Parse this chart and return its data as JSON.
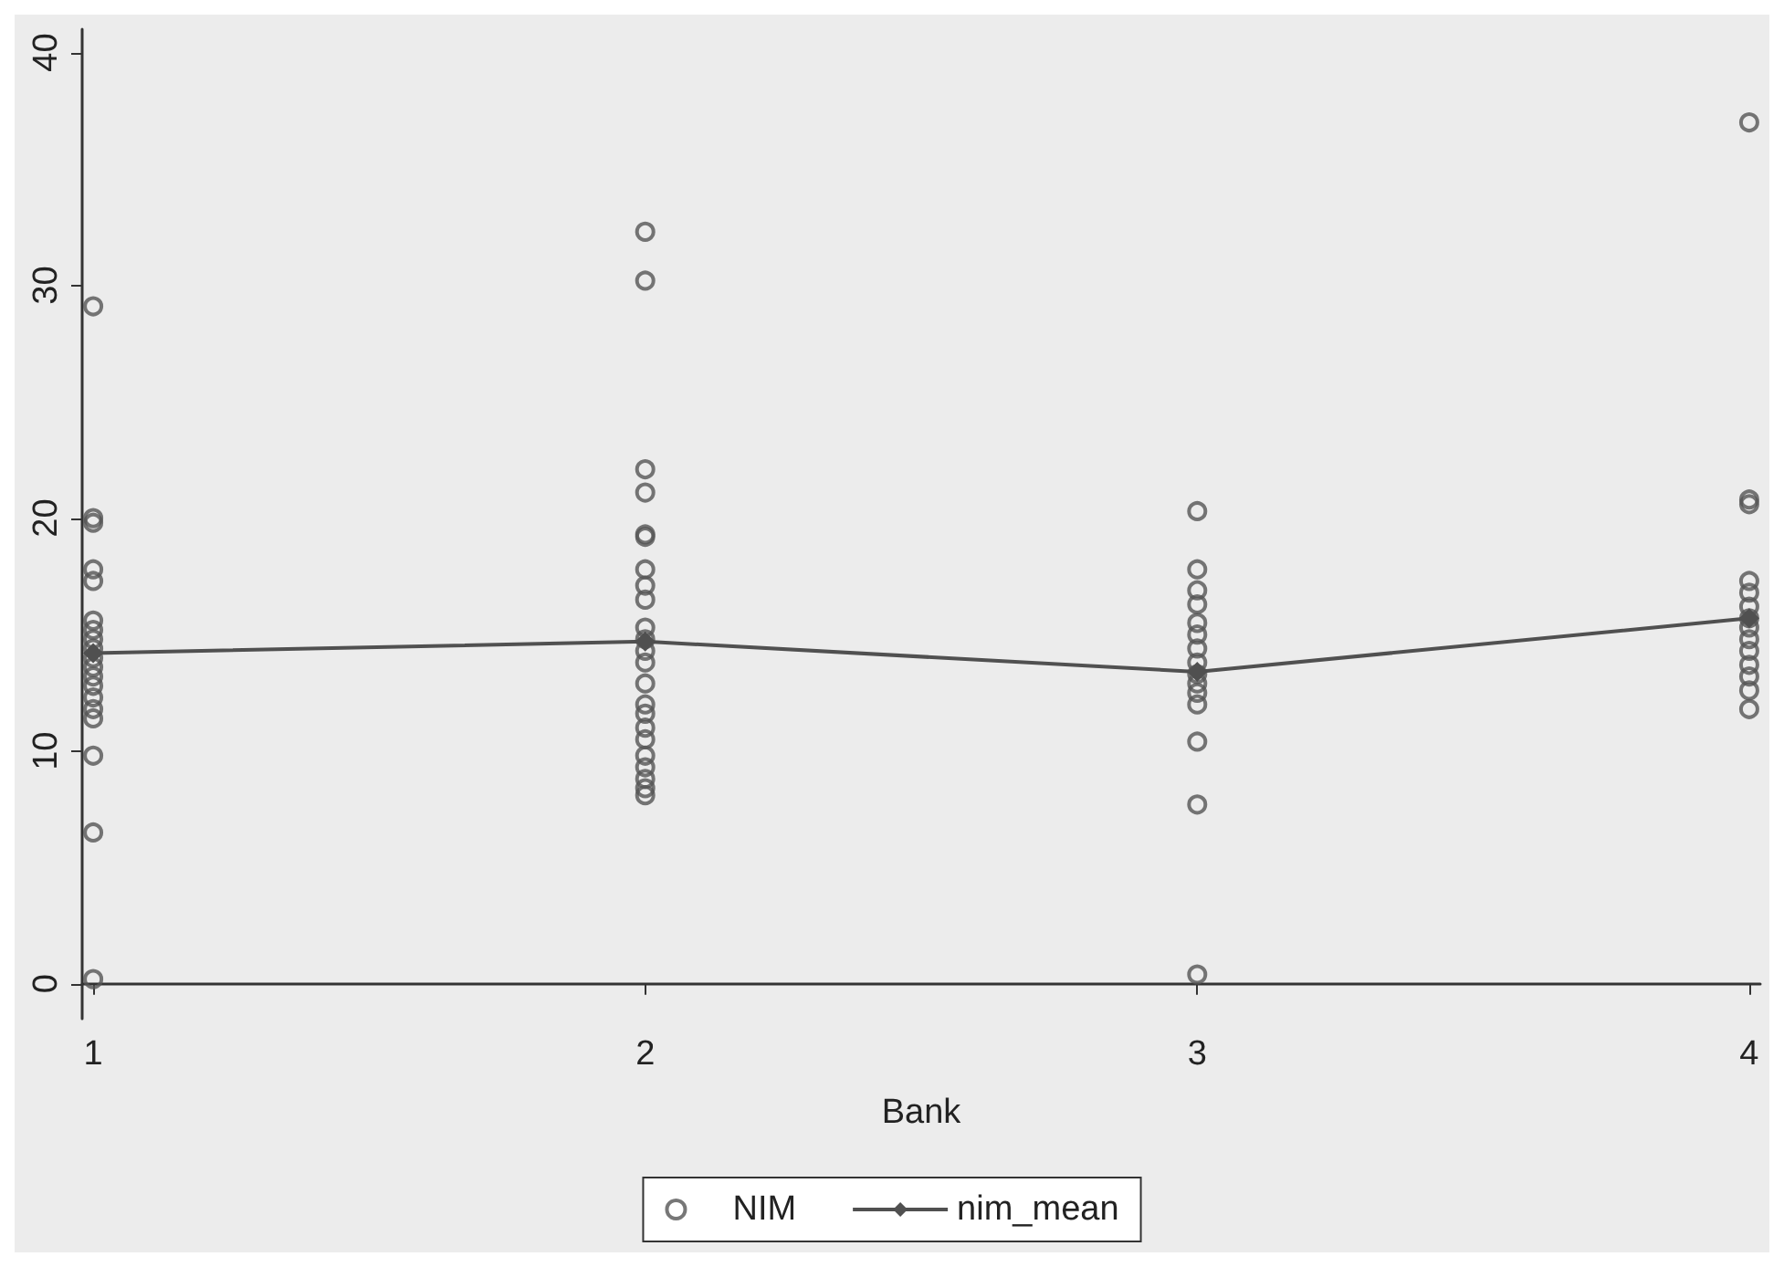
{
  "chart_data": {
    "type": "scatter",
    "xlabel": "Bank",
    "xlim": [
      0.98,
      4.02
    ],
    "xticks": [
      1,
      2,
      3,
      4
    ],
    "ylim": [
      -1.5,
      41
    ],
    "yticks": [
      0,
      10,
      20,
      30,
      40
    ],
    "grid": false,
    "legend": "bottom",
    "series": [
      {
        "name": "NIM",
        "marker": "circle",
        "color": "#555555",
        "x": [
          1,
          1,
          1,
          1,
          1,
          1,
          1,
          1,
          1,
          1,
          1,
          1,
          1,
          1,
          1,
          1,
          1,
          1,
          1,
          2,
          2,
          2,
          2,
          2,
          2,
          2,
          2,
          2,
          2,
          2,
          2,
          2,
          2,
          2,
          2,
          2,
          2,
          2,
          2,
          2,
          2,
          2,
          3,
          3,
          3,
          3,
          3,
          3,
          3,
          3,
          3,
          3,
          3,
          3,
          3,
          3,
          3,
          4,
          4,
          4,
          4,
          4,
          4,
          4,
          4,
          4,
          4,
          4,
          4,
          4,
          4
        ],
        "values": [
          29.1,
          20,
          19.8,
          17.8,
          17.3,
          15.6,
          15.2,
          14.8,
          14.4,
          14,
          13.6,
          13.2,
          12.8,
          12.3,
          11.8,
          11.4,
          9.8,
          6.5,
          0.2,
          32.3,
          30.2,
          22.1,
          21.1,
          19.3,
          19.2,
          17.8,
          17.1,
          16.5,
          15.3,
          14.8,
          14.3,
          13.8,
          12.9,
          12,
          11.6,
          11,
          10.5,
          9.8,
          9.3,
          8.8,
          8.4,
          8.1,
          20.3,
          17.8,
          16.9,
          16.3,
          15.5,
          15,
          14.4,
          13.8,
          13.3,
          12.9,
          12.5,
          12,
          10.4,
          7.7,
          0.4,
          37,
          20.8,
          20.6,
          17.3,
          16.8,
          16.2,
          15.7,
          15.3,
          14.8,
          14.3,
          13.7,
          13.2,
          12.6,
          11.8
        ]
      },
      {
        "name": "nim_mean",
        "type": "line",
        "marker": "diamond",
        "line_style": "solid",
        "color": "#505050",
        "x": [
          1,
          2,
          3,
          4
        ],
        "values": [
          14.2,
          14.7,
          13.4,
          15.7
        ]
      }
    ]
  }
}
